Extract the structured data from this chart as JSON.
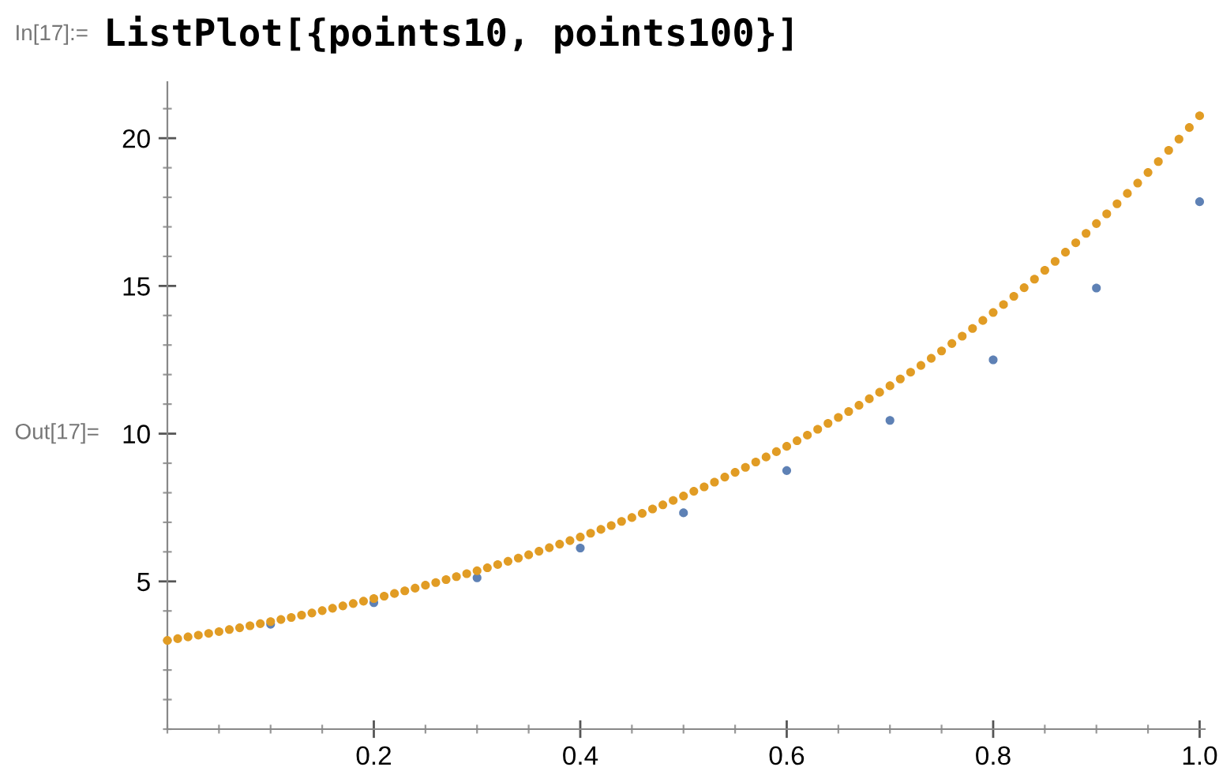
{
  "chart_data": {
    "type": "scatter",
    "annotations": [
      "In[17]:=",
      "ListPlot[{points10, points100}]",
      "Out[17]="
    ],
    "xlim": [
      0,
      1.005
    ],
    "ylim": [
      0,
      21.9
    ],
    "xticks": [
      0.2,
      0.4,
      0.6,
      0.8,
      {
        "value": 1,
        "label": "1.0"
      }
    ],
    "yticks": [
      5,
      10,
      15,
      20
    ],
    "grid": false,
    "legend": false,
    "marker": "circle",
    "series": [
      {
        "color": "#5e81b5",
        "x": [
          0.1,
          0.2,
          0.3,
          0.4,
          0.5,
          0.6,
          0.7,
          0.8,
          0.9,
          1.0
        ],
        "values": [
          3.55,
          4.28,
          5.12,
          6.13,
          7.32,
          8.75,
          10.45,
          12.5,
          14.93,
          17.85
        ]
      },
      {
        "color": "#e19c24",
        "x": [
          0,
          0.01,
          0.02,
          0.03,
          0.04,
          0.05,
          0.06,
          0.07,
          0.08,
          0.09,
          0.1,
          0.11,
          0.12,
          0.13,
          0.14,
          0.15,
          0.16,
          0.17,
          0.18,
          0.19,
          0.2,
          0.21,
          0.22,
          0.23,
          0.24,
          0.25,
          0.26,
          0.27,
          0.28,
          0.29,
          0.3,
          0.31,
          0.32,
          0.33,
          0.34,
          0.35,
          0.36,
          0.37,
          0.38,
          0.39,
          0.4,
          0.41,
          0.42,
          0.43,
          0.44,
          0.45,
          0.46,
          0.47,
          0.48,
          0.49,
          0.5,
          0.51,
          0.52,
          0.53,
          0.54,
          0.55,
          0.56,
          0.57,
          0.58,
          0.59,
          0.6,
          0.61,
          0.62,
          0.63,
          0.64,
          0.65,
          0.66,
          0.67,
          0.68,
          0.69,
          0.7,
          0.71,
          0.72,
          0.73,
          0.74,
          0.75,
          0.76,
          0.77,
          0.78,
          0.79,
          0.8,
          0.81,
          0.82,
          0.83,
          0.84,
          0.85,
          0.86,
          0.87,
          0.88,
          0.89,
          0.9,
          0.91,
          0.92,
          0.93,
          0.94,
          0.95,
          0.96,
          0.97,
          0.98,
          0.99,
          1.0
        ],
        "values": [
          3.0,
          3.06,
          3.12,
          3.18,
          3.24,
          3.3,
          3.37,
          3.43,
          3.5,
          3.57,
          3.64,
          3.71,
          3.78,
          3.86,
          3.93,
          4.01,
          4.09,
          4.17,
          4.25,
          4.33,
          4.42,
          4.5,
          4.59,
          4.68,
          4.77,
          4.87,
          4.96,
          5.06,
          5.16,
          5.26,
          5.36,
          5.46,
          5.57,
          5.68,
          5.79,
          5.9,
          6.02,
          6.14,
          6.26,
          6.38,
          6.5,
          6.63,
          6.76,
          6.89,
          7.03,
          7.16,
          7.3,
          7.45,
          7.59,
          7.74,
          7.89,
          8.05,
          8.2,
          8.36,
          8.53,
          8.69,
          8.86,
          9.04,
          9.21,
          9.39,
          9.57,
          9.76,
          9.95,
          10.15,
          10.35,
          10.55,
          10.75,
          10.96,
          11.18,
          11.4,
          11.62,
          11.85,
          12.08,
          12.31,
          12.55,
          12.8,
          13.05,
          13.3,
          13.56,
          13.83,
          14.1,
          14.37,
          14.65,
          14.94,
          15.23,
          15.53,
          15.83,
          16.14,
          16.46,
          16.78,
          17.11,
          17.44,
          17.78,
          18.13,
          18.48,
          18.84,
          19.21,
          19.59,
          19.97,
          20.36,
          20.76
        ]
      }
    ]
  }
}
